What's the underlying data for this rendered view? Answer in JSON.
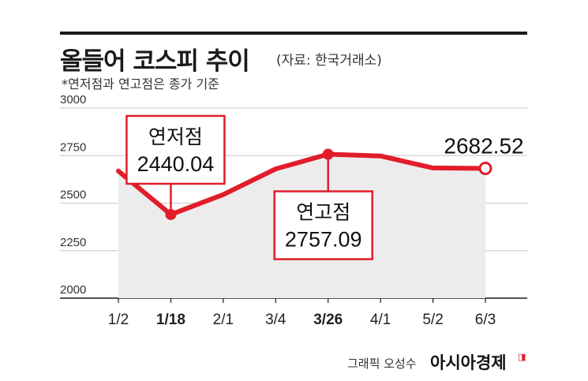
{
  "header": {
    "title": "올들어 코스피 추이",
    "source": "(자료: 한국거래소)",
    "note": "*연저점과 연고점은 종가 기준"
  },
  "footer": {
    "credit": "그래픽 오성수",
    "brand": "아시아경제",
    "brand_mark": "◨"
  },
  "colors": {
    "line": "#e11d2a",
    "area": "#ececec",
    "axis": "#1a1a1a",
    "grid": "#c8c8c8"
  },
  "chart_data": {
    "type": "line",
    "title": "올들어 코스피 추이",
    "categories": [
      "1/2",
      "1/18",
      "2/1",
      "3/4",
      "3/26",
      "4/1",
      "5/2",
      "6/3"
    ],
    "bold_categories": [
      "1/18",
      "3/26"
    ],
    "x_index": [
      0,
      1,
      2,
      3,
      4,
      5,
      6,
      7
    ],
    "values": [
      2669,
      2440.04,
      2545,
      2680,
      2757.09,
      2748,
      2685,
      2682.52
    ],
    "ylim": [
      2000,
      3000
    ],
    "yticks": [
      2000,
      2250,
      2500,
      2750,
      3000
    ],
    "grid": true,
    "fill_area": true,
    "annotations": [
      {
        "label": "연저점",
        "value": "2440.04",
        "point_index": 1,
        "boxed": true
      },
      {
        "label": "연고점",
        "value": "2757.09",
        "point_index": 4,
        "boxed": true
      },
      {
        "label": "",
        "value": "2682.52",
        "point_index": 7,
        "boxed": false
      }
    ]
  }
}
